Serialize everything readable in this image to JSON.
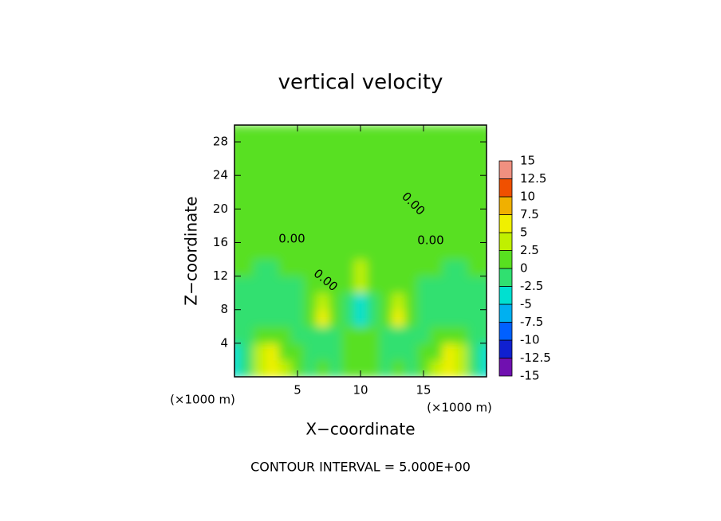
{
  "chart_data": {
    "type": "contour",
    "title": "vertical velocity",
    "xlabel": "X−coordinate",
    "ylabel": "Z−coordinate",
    "x_unit_label": "(×1000 m)",
    "y_unit_label": "(×1000 m)",
    "xlim": [
      0,
      20
    ],
    "ylim": [
      0,
      30
    ],
    "xticks": [
      5,
      10,
      15
    ],
    "yticks": [
      4,
      8,
      12,
      16,
      20,
      24,
      28
    ],
    "x": [
      0,
      1,
      2,
      3,
      4,
      5,
      6,
      7,
      8,
      9,
      10,
      11,
      12,
      13,
      14,
      15,
      16,
      17,
      18,
      19,
      20
    ],
    "y": [
      1,
      3,
      5,
      7,
      9,
      11,
      13,
      15,
      17,
      19,
      21,
      23,
      25,
      27,
      29
    ],
    "z": [
      [
        -3,
        -2,
        3,
        6,
        3,
        0.5,
        -1,
        0.5,
        -1,
        0.5,
        1,
        0.5,
        -1,
        0.5,
        -1,
        0.5,
        3,
        6,
        3,
        -2,
        -3
      ],
      [
        -3,
        -1,
        3,
        5,
        2,
        0,
        -1.5,
        -2,
        -1,
        0.5,
        1,
        0.5,
        -1,
        -2,
        -1.5,
        0,
        2,
        5,
        3,
        -1,
        -3
      ],
      [
        -1,
        -1,
        0.5,
        1,
        0,
        -1,
        -1.5,
        -1,
        -0.5,
        0.5,
        0.5,
        0.5,
        -0.5,
        -1,
        -1.5,
        -1,
        0,
        1,
        0.5,
        -1,
        -1
      ],
      [
        -1,
        -1,
        -1,
        -1,
        -1,
        -0.5,
        1,
        6,
        1,
        -2,
        -4,
        -2,
        1,
        6,
        1,
        -0.5,
        -1,
        -1,
        -1,
        -1,
        -1
      ],
      [
        -1,
        -1,
        -1.5,
        -1.5,
        -1,
        -0.5,
        1,
        4,
        1,
        -2,
        -4,
        -2,
        1,
        4,
        1,
        -0.5,
        -1,
        -1.5,
        -1.5,
        -1,
        -1
      ],
      [
        -0.5,
        -1,
        -1.5,
        -1,
        -1,
        -0.5,
        0.5,
        1,
        1,
        2,
        4,
        2,
        1,
        1,
        0.5,
        -0.5,
        -1,
        -1,
        -1.5,
        -1,
        -0.5
      ],
      [
        0.5,
        0,
        -0.5,
        -0.5,
        0,
        0.5,
        0.5,
        0,
        1,
        2,
        3,
        2,
        1,
        0,
        0.5,
        0.5,
        0,
        -0.5,
        -0.5,
        0,
        0.5
      ],
      [
        1,
        1.5,
        1,
        1,
        1,
        0.5,
        0.5,
        0.5,
        0.5,
        1,
        1,
        1,
        0.5,
        0.5,
        0.5,
        0.5,
        1,
        1,
        1,
        1.5,
        1
      ],
      [
        1,
        1.5,
        1,
        1,
        1,
        1,
        1,
        0.5,
        0.5,
        0.5,
        0.5,
        0.5,
        0.5,
        0.5,
        1,
        1,
        1,
        1,
        1,
        1.5,
        1
      ],
      [
        1,
        1,
        1,
        1,
        1,
        1,
        1,
        1,
        1,
        1,
        1,
        1,
        1,
        1,
        1,
        1,
        1,
        1,
        1,
        1,
        1
      ],
      [
        1,
        1,
        1,
        1,
        1,
        1,
        1,
        1,
        1,
        1,
        1,
        1,
        1,
        1,
        1,
        1,
        1,
        1,
        1,
        1,
        1
      ],
      [
        1,
        1,
        1,
        1,
        1,
        1,
        1,
        1,
        1,
        1,
        1,
        1,
        1,
        1,
        1,
        1,
        1,
        1,
        1,
        1,
        1
      ],
      [
        1,
        1,
        1,
        1,
        1,
        1,
        1,
        1,
        1,
        1,
        1,
        1,
        1,
        1,
        1,
        1,
        1,
        1,
        1,
        1,
        1
      ],
      [
        1,
        1,
        1,
        1,
        1,
        1,
        1,
        1,
        1,
        1,
        1,
        1,
        1,
        1,
        1,
        1,
        1,
        1,
        1,
        1,
        1
      ],
      [
        1,
        1,
        1,
        1,
        1,
        1,
        1,
        1,
        1,
        1,
        1,
        1,
        1,
        1,
        1,
        1,
        1,
        1,
        1,
        1,
        1
      ]
    ],
    "colorbar": {
      "levels": [
        -15,
        -12.5,
        -10,
        -7.5,
        -5,
        -2.5,
        0,
        2.5,
        5,
        7.5,
        10,
        12.5,
        15
      ],
      "colors": [
        "#7010b0",
        "#1020d0",
        "#0060ff",
        "#00b0f0",
        "#00e0d0",
        "#30e070",
        "#58e020",
        "#c0f000",
        "#f0f000",
        "#f0b000",
        "#f05000",
        "#f09080"
      ]
    },
    "contour_labels": [
      "0.00",
      "0.00",
      "0.00",
      "0.00"
    ],
    "footer": "CONTOUR INTERVAL = 5.000E+00"
  }
}
